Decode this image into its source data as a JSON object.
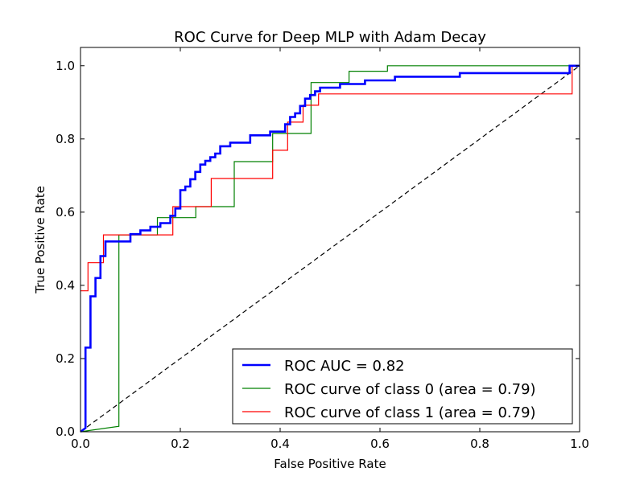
{
  "chart_data": {
    "type": "line",
    "title": "ROC Curve for Deep MLP with Adam Decay",
    "xlabel": "False Positive Rate",
    "ylabel": "True Positive Rate",
    "xlim": [
      0.0,
      1.0
    ],
    "ylim": [
      0.0,
      1.05
    ],
    "x_ticks": [
      "0.0",
      "0.2",
      "0.4",
      "0.6",
      "0.8",
      "1.0"
    ],
    "y_ticks": [
      "0.0",
      "0.2",
      "0.4",
      "0.6",
      "0.8",
      "1.0"
    ],
    "grid": false,
    "legend_position": "bottom-right",
    "series": [
      {
        "name": "ROC AUC = 0.82",
        "color": "#0000ff",
        "style": "solid-thick",
        "x": [
          0.0,
          0.01,
          0.01,
          0.02,
          0.02,
          0.03,
          0.03,
          0.04,
          0.04,
          0.05,
          0.05,
          0.06,
          0.06,
          0.07,
          0.07,
          0.1,
          0.1,
          0.12,
          0.12,
          0.14,
          0.14,
          0.16,
          0.16,
          0.18,
          0.18,
          0.19,
          0.19,
          0.2,
          0.2,
          0.21,
          0.21,
          0.22,
          0.22,
          0.23,
          0.23,
          0.24,
          0.24,
          0.25,
          0.25,
          0.26,
          0.26,
          0.27,
          0.27,
          0.28,
          0.28,
          0.3,
          0.3,
          0.32,
          0.32,
          0.33,
          0.33,
          0.34,
          0.34,
          0.38,
          0.38,
          0.41,
          0.41,
          0.42,
          0.42,
          0.43,
          0.43,
          0.44,
          0.44,
          0.45,
          0.45,
          0.46,
          0.46,
          0.47,
          0.47,
          0.48,
          0.48,
          0.52,
          0.52,
          0.57,
          0.57,
          0.63,
          0.63,
          0.76,
          0.76,
          0.98,
          0.98,
          1.0
        ],
        "y": [
          0.0,
          0.01,
          0.23,
          0.23,
          0.37,
          0.37,
          0.42,
          0.42,
          0.48,
          0.48,
          0.52,
          0.52,
          0.52,
          0.52,
          0.52,
          0.52,
          0.54,
          0.54,
          0.55,
          0.55,
          0.56,
          0.56,
          0.57,
          0.57,
          0.59,
          0.59,
          0.61,
          0.61,
          0.66,
          0.66,
          0.67,
          0.67,
          0.69,
          0.69,
          0.71,
          0.71,
          0.73,
          0.73,
          0.74,
          0.74,
          0.75,
          0.75,
          0.76,
          0.76,
          0.78,
          0.78,
          0.79,
          0.79,
          0.79,
          0.79,
          0.79,
          0.79,
          0.81,
          0.81,
          0.82,
          0.82,
          0.84,
          0.84,
          0.86,
          0.86,
          0.87,
          0.87,
          0.89,
          0.89,
          0.91,
          0.91,
          0.92,
          0.92,
          0.93,
          0.93,
          0.94,
          0.94,
          0.95,
          0.95,
          0.96,
          0.96,
          0.97,
          0.97,
          0.98,
          0.98,
          1.0,
          1.0
        ]
      },
      {
        "name": "ROC curve of class 0 (area = 0.79)",
        "color": "#008000",
        "style": "solid",
        "x": [
          0.0,
          0.077,
          0.077,
          0.154,
          0.154,
          0.231,
          0.231,
          0.308,
          0.308,
          0.385,
          0.385,
          0.462,
          0.462,
          0.538,
          0.538,
          0.615,
          0.615,
          1.0
        ],
        "y": [
          0.0,
          0.015,
          0.538,
          0.538,
          0.585,
          0.585,
          0.615,
          0.615,
          0.738,
          0.738,
          0.815,
          0.815,
          0.954,
          0.954,
          0.985,
          0.985,
          1.0,
          1.0
        ]
      },
      {
        "name": "ROC curve of class 1 (area = 0.79)",
        "color": "#ff0000",
        "style": "solid",
        "x": [
          0.0,
          0.015,
          0.015,
          0.046,
          0.046,
          0.185,
          0.185,
          0.262,
          0.262,
          0.385,
          0.385,
          0.415,
          0.415,
          0.446,
          0.446,
          0.477,
          0.477,
          0.985,
          0.985,
          1.0
        ],
        "y": [
          0.385,
          0.385,
          0.462,
          0.462,
          0.538,
          0.538,
          0.615,
          0.615,
          0.692,
          0.692,
          0.769,
          0.769,
          0.846,
          0.846,
          0.892,
          0.892,
          0.923,
          0.923,
          1.0,
          1.0
        ]
      },
      {
        "name": "",
        "color": "#000000",
        "style": "dashed",
        "x": [
          0.0,
          1.0
        ],
        "y": [
          0.0,
          1.0
        ]
      }
    ]
  }
}
